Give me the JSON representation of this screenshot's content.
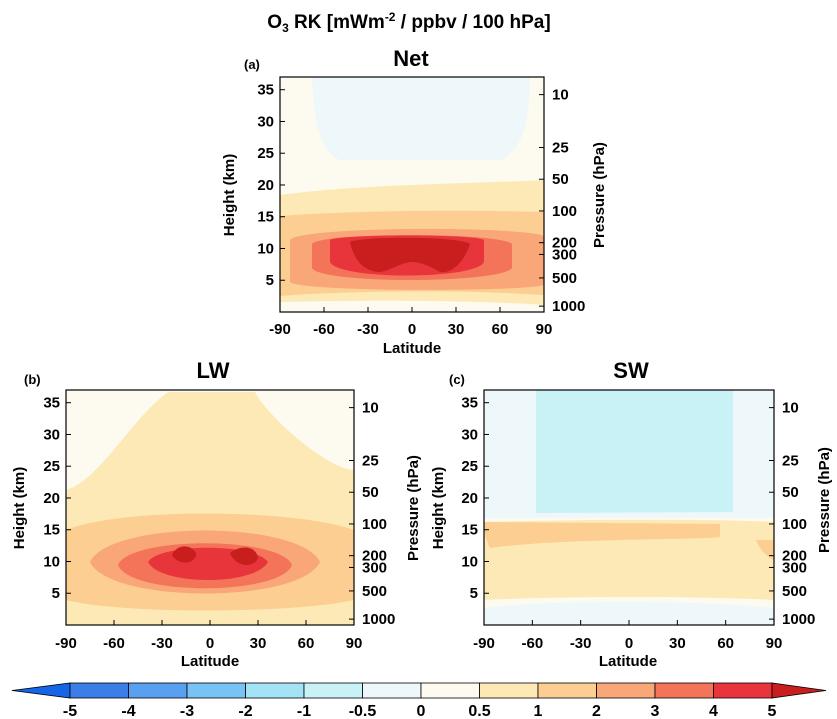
{
  "figure": {
    "title_main": "O",
    "title_sub": "3",
    "title_rest": " RK [mWm",
    "title_sup": "-2",
    "title_end": " / ppbv / 100 hPa]"
  },
  "chart_data": [
    {
      "type": "heatmap",
      "panel_label": "(a)",
      "title": "Net",
      "xlabel": "Latitude",
      "ylabel": "Height (km)",
      "y2label": "Pressure (hPa)",
      "x_ticks": [
        "-90",
        "-60",
        "-30",
        "0",
        "30",
        "60",
        "90"
      ],
      "y_ticks": [
        "5",
        "10",
        "15",
        "20",
        "25",
        "30",
        "35"
      ],
      "y2_ticks": [
        "10",
        "25",
        "50",
        "100",
        "200",
        "300",
        "500",
        "1000"
      ],
      "xlim": [
        -90,
        90
      ],
      "ylim": [
        0,
        37
      ],
      "regions": [
        {
          "level": 0,
          "description": "background 0 to 0.5"
        },
        {
          "level": -0.5,
          "lat": [
            -60,
            75
          ],
          "height": [
            24,
            37
          ]
        },
        {
          "level": 0.5,
          "lat": [
            -90,
            90
          ],
          "height": [
            2,
            21
          ]
        },
        {
          "level": 1,
          "lat": [
            -90,
            90
          ],
          "height": [
            3,
            16
          ]
        },
        {
          "level": 2,
          "lat": [
            -82,
            90
          ],
          "height": [
            4,
            14
          ]
        },
        {
          "level": 3,
          "lat": [
            -65,
            70
          ],
          "height": [
            5,
            13
          ]
        },
        {
          "level": 4,
          "lat": [
            -45,
            45
          ],
          "height": [
            5.5,
            12
          ]
        },
        {
          "level": 5,
          "lat": [
            -30,
            30
          ],
          "height": [
            6.5,
            11.5
          ]
        }
      ]
    },
    {
      "type": "heatmap",
      "panel_label": "(b)",
      "title": "LW",
      "xlabel": "Latitude",
      "ylabel": "Height (km)",
      "y2label": "Pressure (hPa)",
      "x_ticks": [
        "-90",
        "-60",
        "-30",
        "0",
        "30",
        "60",
        "90"
      ],
      "y_ticks": [
        "5",
        "10",
        "15",
        "20",
        "25",
        "30",
        "35"
      ],
      "y2_ticks": [
        "10",
        "25",
        "50",
        "100",
        "200",
        "300",
        "500",
        "1000"
      ],
      "xlim": [
        -90,
        90
      ],
      "ylim": [
        0,
        37
      ],
      "regions": [
        {
          "level": 0,
          "description": "background 0 to 0.5"
        },
        {
          "level": -0.5,
          "lat": [
            -90,
            -80
          ],
          "height": [
            0,
            3
          ]
        },
        {
          "level": 0.5,
          "lat": [
            -90,
            90
          ],
          "height": [
            2,
            37
          ]
        },
        {
          "level": 1,
          "lat": [
            -90,
            90
          ],
          "height": [
            3,
            23
          ]
        },
        {
          "level": 2,
          "lat": [
            -75,
            78
          ],
          "height": [
            4,
            17
          ]
        },
        {
          "level": 3,
          "lat": [
            -55,
            60
          ],
          "height": [
            5,
            14
          ]
        },
        {
          "level": 4,
          "lat": [
            -35,
            40
          ],
          "height": [
            6.5,
            12.5
          ]
        },
        {
          "level": 5,
          "lat": [
            -22,
            25
          ],
          "height": [
            9,
            12
          ]
        }
      ]
    },
    {
      "type": "heatmap",
      "panel_label": "(c)",
      "title": "SW",
      "xlabel": "Latitude",
      "ylabel": "Height (km)",
      "y2label": "Pressure (hPa)",
      "x_ticks": [
        "-90",
        "-60",
        "-30",
        "0",
        "30",
        "60",
        "90"
      ],
      "y_ticks": [
        "5",
        "10",
        "15",
        "20",
        "25",
        "30",
        "35"
      ],
      "y2_ticks": [
        "10",
        "25",
        "50",
        "100",
        "200",
        "300",
        "500",
        "1000"
      ],
      "xlim": [
        -90,
        90
      ],
      "ylim": [
        0,
        37
      ],
      "regions": [
        {
          "level": -0.5,
          "lat": [
            -90,
            90
          ],
          "height": [
            12,
            37
          ]
        },
        {
          "level": -1,
          "lat": [
            -60,
            62
          ],
          "height": [
            13,
            37
          ]
        },
        {
          "level": 0.5,
          "lat": [
            -90,
            90
          ],
          "height": [
            2,
            12
          ]
        },
        {
          "level": 1,
          "lat": [
            -90,
            90
          ],
          "height": [
            8,
            11.5
          ]
        },
        {
          "level": 0,
          "lat": [
            -90,
            90
          ],
          "height": [
            0,
            2
          ]
        }
      ]
    }
  ],
  "colorbar": {
    "labels": [
      "-5",
      "-4",
      "-3",
      "-2",
      "-1",
      "-0.5",
      "0",
      "0.5",
      "1",
      "2",
      "3",
      "4",
      "5"
    ],
    "colors": {
      "below": "#1565e8",
      "n5_n4": "#3b7ee8",
      "n4_n3": "#5aa0f0",
      "n3_n2": "#79c2f5",
      "n2_n1": "#a4e3f5",
      "n1_n05": "#c8f2f6",
      "n05_0": "#eef7fa",
      "0_05": "#fdfaf0",
      "05_1": "#fde9b5",
      "1_2": "#fcce92",
      "2_3": "#f9a679",
      "3_4": "#f47459",
      "4_5": "#e8353c",
      "above": "#c81e1e"
    }
  }
}
